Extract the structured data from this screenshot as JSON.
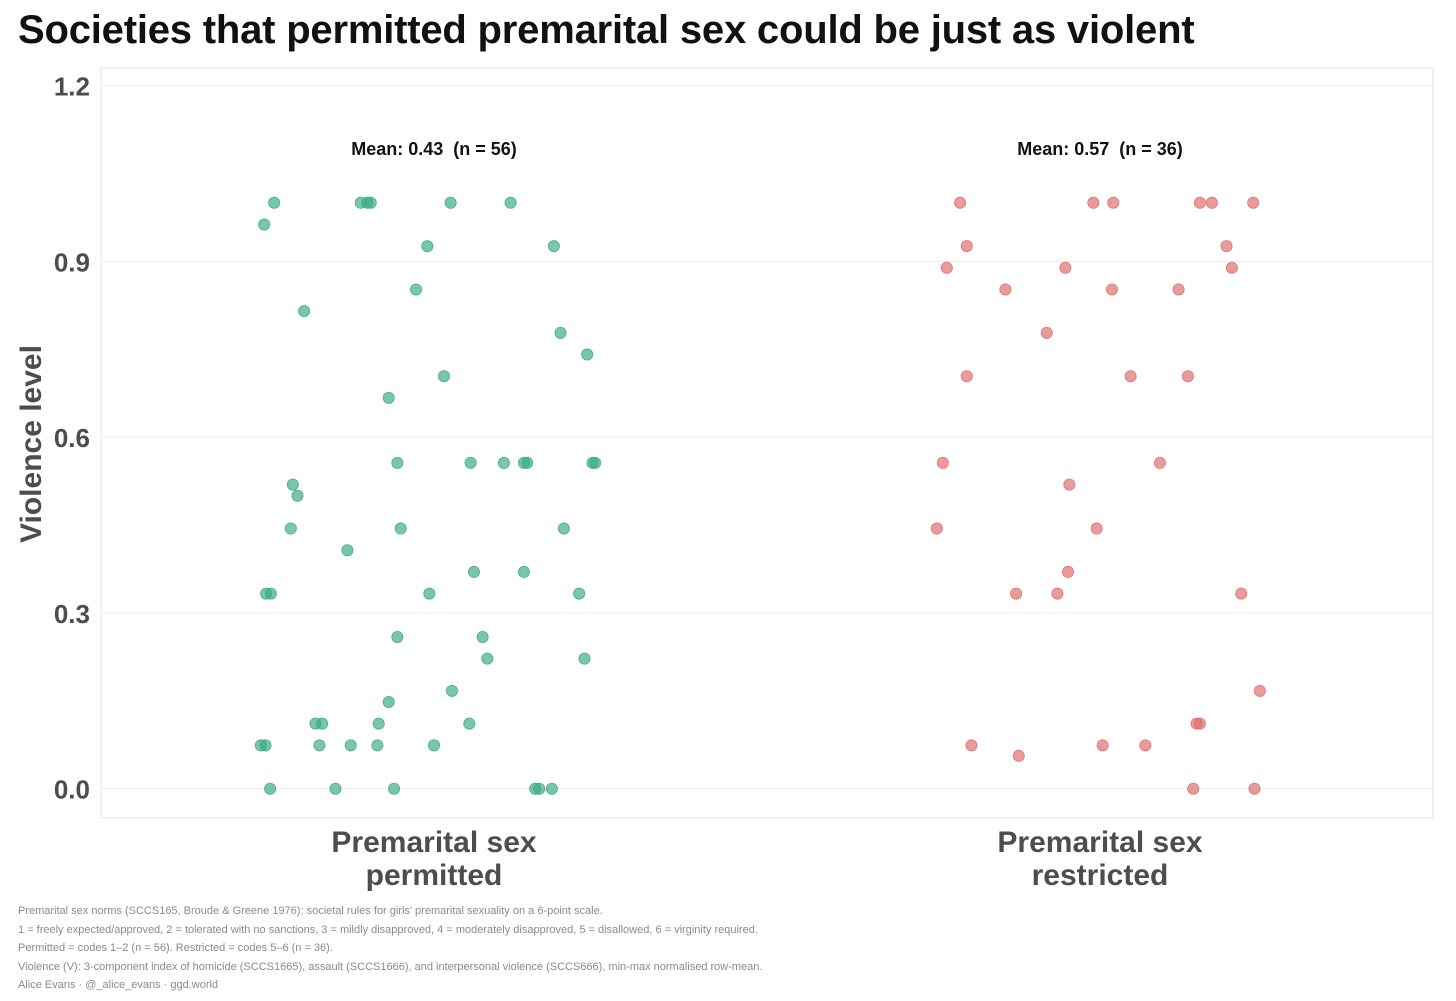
{
  "title": "Societies that permitted premarital sex could be just as violent",
  "chart_data": {
    "type": "scatter",
    "subtype": "jittered strip plot",
    "title": "Societies that permitted premarital sex could be just as violent",
    "xlabel": "",
    "ylabel": "Violence level",
    "ylim": [
      -0.05,
      1.23
    ],
    "yticks": [
      0.0,
      0.3,
      0.6,
      0.9,
      1.2
    ],
    "ytick_labels": [
      "0.0",
      "0.3",
      "0.6",
      "0.9",
      "1.2"
    ],
    "grid": true,
    "categories": [
      "Premarital sex\npermitted",
      "Premarital sex\nrestricted"
    ],
    "series": [
      {
        "name": "Premarital sex permitted",
        "color": "#3aab82",
        "mean_label": "Mean: 0.43  (n = 56)",
        "mean": 0.43,
        "n": 56,
        "points": [
          {
            "x": -0.24,
            "y": 1.0
          },
          {
            "x": -0.1,
            "y": 1.0
          },
          {
            "x": -0.11,
            "y": 1.0
          },
          {
            "x": -0.095,
            "y": 1.0
          },
          {
            "x": 0.025,
            "y": 1.0
          },
          {
            "x": 0.115,
            "y": 1.0
          },
          {
            "x": -0.255,
            "y": 0.963
          },
          {
            "x": -0.01,
            "y": 0.926
          },
          {
            "x": 0.18,
            "y": 0.926
          },
          {
            "x": -0.027,
            "y": 0.852
          },
          {
            "x": -0.195,
            "y": 0.815
          },
          {
            "x": 0.19,
            "y": 0.778
          },
          {
            "x": 0.23,
            "y": 0.741
          },
          {
            "x": 0.015,
            "y": 0.704
          },
          {
            "x": -0.068,
            "y": 0.667
          },
          {
            "x": -0.055,
            "y": 0.556
          },
          {
            "x": 0.055,
            "y": 0.556
          },
          {
            "x": 0.105,
            "y": 0.556
          },
          {
            "x": 0.135,
            "y": 0.556
          },
          {
            "x": 0.14,
            "y": 0.556
          },
          {
            "x": 0.238,
            "y": 0.556
          },
          {
            "x": 0.242,
            "y": 0.556
          },
          {
            "x": -0.212,
            "y": 0.519
          },
          {
            "x": -0.205,
            "y": 0.5
          },
          {
            "x": -0.215,
            "y": 0.444
          },
          {
            "x": -0.05,
            "y": 0.444
          },
          {
            "x": 0.195,
            "y": 0.444
          },
          {
            "x": -0.13,
            "y": 0.407
          },
          {
            "x": 0.06,
            "y": 0.37
          },
          {
            "x": 0.135,
            "y": 0.37
          },
          {
            "x": -0.252,
            "y": 0.333
          },
          {
            "x": -0.245,
            "y": 0.333
          },
          {
            "x": -0.007,
            "y": 0.333
          },
          {
            "x": 0.218,
            "y": 0.333
          },
          {
            "x": -0.055,
            "y": 0.259
          },
          {
            "x": 0.073,
            "y": 0.259
          },
          {
            "x": 0.08,
            "y": 0.222
          },
          {
            "x": 0.226,
            "y": 0.222
          },
          {
            "x": 0.027,
            "y": 0.167
          },
          {
            "x": -0.068,
            "y": 0.148
          },
          {
            "x": -0.178,
            "y": 0.111
          },
          {
            "x": -0.168,
            "y": 0.111
          },
          {
            "x": -0.083,
            "y": 0.111
          },
          {
            "x": 0.053,
            "y": 0.111
          },
          {
            "x": -0.26,
            "y": 0.074
          },
          {
            "x": -0.253,
            "y": 0.074
          },
          {
            "x": -0.172,
            "y": 0.074
          },
          {
            "x": -0.125,
            "y": 0.074
          },
          {
            "x": -0.085,
            "y": 0.074
          },
          {
            "x": 0.0,
            "y": 0.074
          },
          {
            "x": -0.246,
            "y": 0.0
          },
          {
            "x": -0.148,
            "y": 0.0
          },
          {
            "x": -0.06,
            "y": 0.0
          },
          {
            "x": 0.152,
            "y": 0.0
          },
          {
            "x": 0.158,
            "y": 0.0
          },
          {
            "x": 0.177,
            "y": 0.0
          }
        ]
      },
      {
        "name": "Premarital sex restricted",
        "color": "#de6b6b",
        "mean_label": "Mean: 0.57  (n = 36)",
        "mean": 0.57,
        "n": 36,
        "points": [
          {
            "x": -0.21,
            "y": 1.0
          },
          {
            "x": -0.01,
            "y": 1.0
          },
          {
            "x": 0.02,
            "y": 1.0
          },
          {
            "x": 0.15,
            "y": 1.0
          },
          {
            "x": 0.168,
            "y": 1.0
          },
          {
            "x": 0.23,
            "y": 1.0
          },
          {
            "x": -0.2,
            "y": 0.926
          },
          {
            "x": 0.19,
            "y": 0.926
          },
          {
            "x": -0.23,
            "y": 0.889
          },
          {
            "x": -0.052,
            "y": 0.889
          },
          {
            "x": 0.198,
            "y": 0.889
          },
          {
            "x": -0.142,
            "y": 0.852
          },
          {
            "x": 0.018,
            "y": 0.852
          },
          {
            "x": 0.118,
            "y": 0.852
          },
          {
            "x": -0.08,
            "y": 0.778
          },
          {
            "x": -0.2,
            "y": 0.704
          },
          {
            "x": 0.046,
            "y": 0.704
          },
          {
            "x": 0.132,
            "y": 0.704
          },
          {
            "x": -0.236,
            "y": 0.556
          },
          {
            "x": 0.09,
            "y": 0.556
          },
          {
            "x": -0.046,
            "y": 0.519
          },
          {
            "x": -0.245,
            "y": 0.444
          },
          {
            "x": -0.005,
            "y": 0.444
          },
          {
            "x": -0.048,
            "y": 0.37
          },
          {
            "x": -0.126,
            "y": 0.333
          },
          {
            "x": -0.064,
            "y": 0.333
          },
          {
            "x": 0.212,
            "y": 0.333
          },
          {
            "x": 0.24,
            "y": 0.167
          },
          {
            "x": 0.145,
            "y": 0.111
          },
          {
            "x": 0.15,
            "y": 0.111
          },
          {
            "x": -0.193,
            "y": 0.074
          },
          {
            "x": 0.004,
            "y": 0.074
          },
          {
            "x": 0.068,
            "y": 0.074
          },
          {
            "x": -0.122,
            "y": 0.056
          },
          {
            "x": 0.14,
            "y": 0.0
          },
          {
            "x": 0.232,
            "y": 0.0
          }
        ]
      }
    ]
  },
  "footnotes": [
    "Premarital sex norms (SCCS165, Broude & Greene 1976): societal rules for girls' premarital sexuality on a 6-point scale.",
    "1 = freely expected/approved, 2 = tolerated with no sanctions, 3 = mildly disapproved, 4 = moderately disapproved, 5 = disallowed, 6 = virginity required.",
    "Permitted = codes 1–2 (n = 56). Restricted = codes 5–6 (n = 36).",
    "Violence (V): 3-component index of homicide (SCCS1665), assault (SCCS1666), and interpersonal violence (SCCS666), min-max normalised row-mean.",
    "Alice Evans · @_alice_evans · ggd.world"
  ]
}
